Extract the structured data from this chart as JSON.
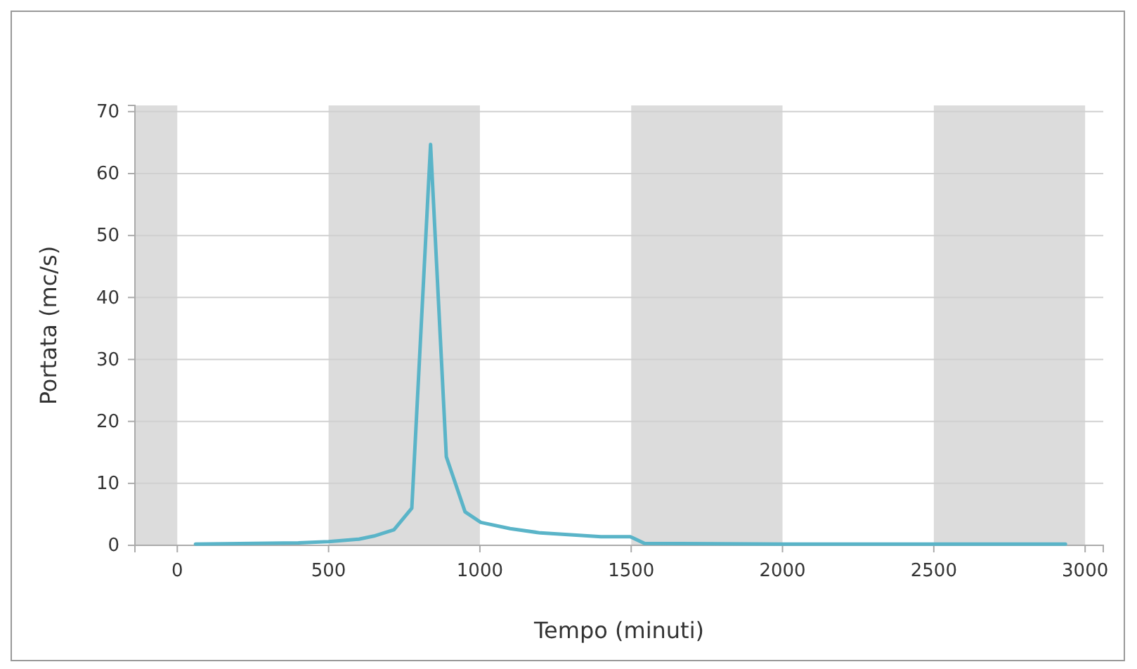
{
  "chart_data": {
    "type": "line",
    "xlabel": "Tempo (minuti)",
    "ylabel": "Portata (mc/s)",
    "x": [
      60,
      400,
      500,
      600,
      650,
      716,
      775,
      837,
      889,
      951,
      1003,
      1100,
      1200,
      1300,
      1400,
      1497,
      1544,
      2000,
      2500,
      2935
    ],
    "series": [
      {
        "color": "#5ab4c8",
        "values": [
          0.2,
          0.4,
          0.6,
          1.0,
          1.5,
          2.5,
          6.0,
          64.7,
          14.3,
          5.4,
          3.7,
          2.7,
          2.0,
          1.7,
          1.4,
          1.4,
          0.3,
          0.2,
          0.2,
          0.2
        ]
      }
    ],
    "xlim": [
      -140,
      3060
    ],
    "xticks": [
      0,
      500,
      1000,
      1500,
      2000,
      2500,
      3000
    ],
    "ylim": [
      0,
      71
    ],
    "yticks": [
      0,
      10,
      20,
      30,
      40,
      50,
      60,
      70
    ],
    "bands": [
      {
        "axis": "x",
        "from": -140,
        "to": 0,
        "color": "#dcdcdc"
      },
      {
        "axis": "x",
        "from": 500,
        "to": 1000,
        "color": "#dcdcdc"
      },
      {
        "axis": "x",
        "from": 1500,
        "to": 2000,
        "color": "#dcdcdc"
      },
      {
        "axis": "x",
        "from": 2500,
        "to": 3000,
        "color": "#dcdcdc"
      }
    ],
    "grid": "y",
    "marker": "none",
    "line_style": "solid"
  }
}
